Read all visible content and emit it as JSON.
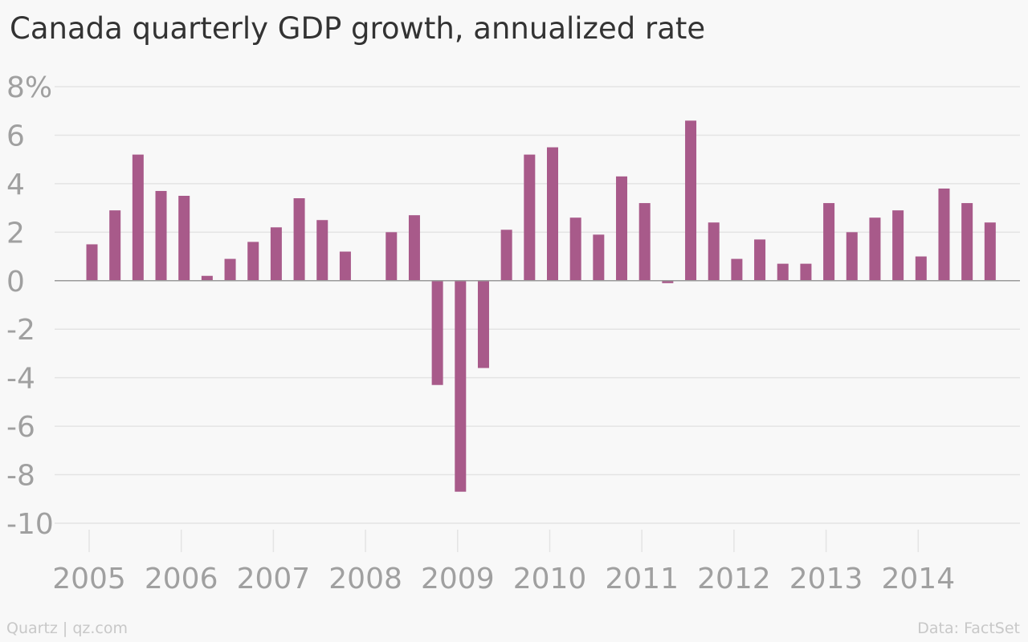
{
  "title": "Canada quarterly GDP growth, annualized rate",
  "footer": {
    "left": "Quartz | qz.com",
    "right": "Data: FactSet"
  },
  "colors": {
    "bar": "#a85a8a",
    "grid": "#e4e4e4",
    "zero_line": "#9a9a9a",
    "tick_text": "#a0a0a0",
    "background": "#f8f8f8"
  },
  "chart_data": {
    "type": "bar",
    "title": "Canada quarterly GDP growth, annualized rate",
    "xlabel": "",
    "ylabel": "",
    "ylim": [
      -10,
      8
    ],
    "grid": true,
    "y_ticks": [
      8,
      6,
      4,
      2,
      0,
      -2,
      -4,
      -6,
      -8,
      -10
    ],
    "y_tick_labels": [
      "8%",
      "6",
      "4",
      "2",
      "0",
      "-2",
      "-4",
      "-6",
      "-8",
      "-10"
    ],
    "x_tick_labels": [
      "2005",
      "2006",
      "2007",
      "2008",
      "2009",
      "2010",
      "2011",
      "2012",
      "2013",
      "2014"
    ],
    "categories": [
      "2005 Q1",
      "2005 Q2",
      "2005 Q3",
      "2005 Q4",
      "2006 Q1",
      "2006 Q2",
      "2006 Q3",
      "2006 Q4",
      "2007 Q1",
      "2007 Q2",
      "2007 Q3",
      "2007 Q4",
      "2008 Q1",
      "2008 Q2",
      "2008 Q3",
      "2008 Q4",
      "2009 Q1",
      "2009 Q2",
      "2009 Q3",
      "2009 Q4",
      "2010 Q1",
      "2010 Q2",
      "2010 Q3",
      "2010 Q4",
      "2011 Q1",
      "2011 Q2",
      "2011 Q3",
      "2011 Q4",
      "2012 Q1",
      "2012 Q2",
      "2012 Q3",
      "2012 Q4",
      "2013 Q1",
      "2013 Q2",
      "2013 Q3",
      "2013 Q4",
      "2014 Q1",
      "2014 Q2",
      "2014 Q3",
      "2014 Q4"
    ],
    "values": [
      1.5,
      2.9,
      5.2,
      3.7,
      3.5,
      0.2,
      0.9,
      1.6,
      2.2,
      3.4,
      2.5,
      1.2,
      0.0,
      2.0,
      2.7,
      -4.3,
      -8.7,
      -3.6,
      2.1,
      5.2,
      5.5,
      2.6,
      1.9,
      4.3,
      3.2,
      -0.1,
      6.6,
      2.4,
      0.9,
      1.7,
      0.7,
      0.7,
      3.2,
      2.0,
      2.6,
      2.9,
      1.0,
      3.8,
      3.2,
      2.4
    ]
  }
}
